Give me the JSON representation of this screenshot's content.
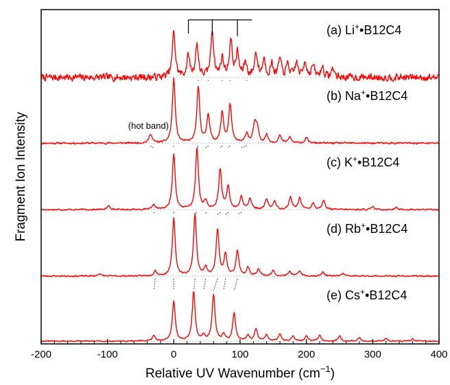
{
  "chart_data": {
    "type": "line",
    "title": "",
    "xlabel_main": "Relative UV Wavenumber (cm",
    "xlabel_sup": "−1",
    "xlabel_end": ")",
    "ylabel": "Fragment Ion Intensity",
    "xlim": [
      -200,
      400
    ],
    "x_ticks": [
      -200,
      -100,
      0,
      100,
      200,
      300,
      400
    ],
    "x_tick_labels": [
      "-200",
      "-100",
      "0",
      "100",
      "200",
      "300",
      "400"
    ],
    "line_color": "#ff0000",
    "baseline_color": "#bbbbbb",
    "series": [
      {
        "label_prefix": "(a) Li",
        "label_sup": "+",
        "label_suffix": "•B12C4",
        "peaks": [
          [
            0,
            0.78
          ],
          [
            22,
            0.36
          ],
          [
            35,
            0.55
          ],
          [
            58,
            0.8
          ],
          [
            73,
            0.32
          ],
          [
            86,
            0.62
          ],
          [
            96,
            0.4
          ],
          [
            108,
            0.25
          ],
          [
            124,
            0.42
          ],
          [
            136,
            0.3
          ],
          [
            148,
            0.22
          ],
          [
            160,
            0.3
          ],
          [
            172,
            0.22
          ],
          [
            185,
            0.25
          ],
          [
            198,
            0.28
          ],
          [
            210,
            0.2
          ],
          [
            224,
            0.18
          ],
          [
            240,
            0.15
          ]
        ],
        "noise": 0.11,
        "seed": 7
      },
      {
        "label_prefix": "(b) Na",
        "label_sup": "+",
        "label_suffix": "•B12C4",
        "peaks": [
          [
            -35,
            0.14
          ],
          [
            0,
            0.98
          ],
          [
            37,
            0.84
          ],
          [
            52,
            0.43
          ],
          [
            73,
            0.45
          ],
          [
            85,
            0.58
          ],
          [
            110,
            0.15
          ],
          [
            122,
            0.28
          ],
          [
            126,
            0.21
          ],
          [
            140,
            0.12
          ],
          [
            160,
            0.11
          ],
          [
            175,
            0.09
          ],
          [
            200,
            0.08
          ]
        ],
        "noise": 0.025,
        "seed": 11
      },
      {
        "label_prefix": "(c) K",
        "label_sup": "+",
        "label_suffix": "•B12C4",
        "peaks": [
          [
            -98,
            0.06
          ],
          [
            -30,
            0.07
          ],
          [
            0,
            0.85
          ],
          [
            35,
            0.94
          ],
          [
            48,
            0.12
          ],
          [
            70,
            0.61
          ],
          [
            82,
            0.35
          ],
          [
            102,
            0.2
          ],
          [
            115,
            0.17
          ],
          [
            140,
            0.16
          ],
          [
            152,
            0.13
          ],
          [
            176,
            0.19
          ],
          [
            190,
            0.18
          ],
          [
            210,
            0.1
          ],
          [
            226,
            0.14
          ],
          [
            300,
            0.04
          ],
          [
            335,
            0.03
          ]
        ],
        "noise": 0.02,
        "seed": 17
      },
      {
        "label_prefix": "(d) Rb",
        "label_sup": "+",
        "label_suffix": "•B12C4",
        "peaks": [
          [
            -112,
            0.04
          ],
          [
            -28,
            0.08
          ],
          [
            0,
            0.88
          ],
          [
            32,
            0.95
          ],
          [
            48,
            0.12
          ],
          [
            66,
            0.72
          ],
          [
            78,
            0.33
          ],
          [
            96,
            0.38
          ],
          [
            112,
            0.13
          ],
          [
            128,
            0.11
          ],
          [
            150,
            0.08
          ],
          [
            175,
            0.07
          ],
          [
            190,
            0.08
          ],
          [
            225,
            0.06
          ],
          [
            255,
            0.04
          ]
        ],
        "noise": 0.02,
        "seed": 23
      },
      {
        "label_prefix": "(e) Cs",
        "label_sup": "+",
        "label_suffix": "•B12C4",
        "peaks": [
          [
            -30,
            0.1
          ],
          [
            0,
            0.75
          ],
          [
            30,
            0.92
          ],
          [
            45,
            0.1
          ],
          [
            60,
            0.86
          ],
          [
            75,
            0.12
          ],
          [
            91,
            0.52
          ],
          [
            112,
            0.11
          ],
          [
            124,
            0.22
          ],
          [
            140,
            0.12
          ],
          [
            160,
            0.13
          ],
          [
            180,
            0.1
          ],
          [
            200,
            0.09
          ],
          [
            220,
            0.11
          ],
          [
            250,
            0.09
          ],
          [
            280,
            0.06
          ],
          [
            320,
            0.05
          ],
          [
            360,
            0.04
          ]
        ],
        "noise": 0.02,
        "seed": 31
      }
    ],
    "correlation_lines": [
      [
        -35,
        -30,
        -28,
        -30
      ],
      [
        0,
        0,
        0,
        0
      ],
      [
        37,
        35,
        32,
        30
      ],
      [
        52,
        48,
        48,
        45
      ],
      [
        73,
        70,
        66,
        60
      ],
      [
        85,
        82,
        78,
        75
      ],
      [
        110,
        102,
        96,
        91
      ]
    ],
    "progression_ticks": [
      22,
      58,
      96
    ],
    "progression_end": 118,
    "annotation": "(hot band)",
    "annotation_x": -32
  }
}
